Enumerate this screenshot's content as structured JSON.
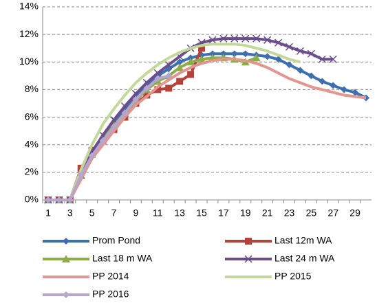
{
  "chart_data": {
    "type": "line",
    "categories": [
      1,
      null,
      3,
      null,
      5,
      null,
      7,
      null,
      9,
      null,
      11,
      null,
      13,
      null,
      15,
      null,
      17,
      null,
      19,
      null,
      21,
      null,
      23,
      null,
      25,
      null,
      27,
      null,
      29,
      null
    ],
    "ylim": [
      0,
      14
    ],
    "yticks": [
      {
        "value": 0,
        "label": "0%"
      },
      {
        "value": 2,
        "label": "2%"
      },
      {
        "value": 4,
        "label": "4%"
      },
      {
        "value": 6,
        "label": "6%"
      },
      {
        "value": 8,
        "label": "8%"
      },
      {
        "value": 10,
        "label": "10%"
      },
      {
        "value": 12,
        "label": "12%"
      },
      {
        "value": 14,
        "label": "14%"
      }
    ],
    "grid": true,
    "series": [
      {
        "name": "Prom Pond",
        "color": "#3e6fb0",
        "marker": "diamond",
        "values": [
          0,
          0,
          0,
          2,
          3.5,
          4.5,
          5.5,
          6.5,
          7.5,
          8.3,
          9,
          9.5,
          10,
          10.3,
          10.5,
          10.6,
          10.6,
          10.6,
          10.6,
          10.5,
          10.4,
          10.2,
          9.8,
          9.4,
          9,
          8.6,
          8.3,
          8,
          7.8,
          7.4
        ]
      },
      {
        "name": "Last 12m WA",
        "color": "#b5413c",
        "marker": "square",
        "values": [
          0,
          0,
          0,
          2.3,
          3.6,
          4.3,
          5.1,
          6,
          7,
          7.6,
          8,
          8.1,
          8.6,
          9.1,
          11,
          null,
          null,
          null,
          null,
          null,
          null,
          null,
          null,
          null,
          null,
          null,
          null,
          null,
          null,
          null
        ]
      },
      {
        "name": "Last 18 m WA",
        "color": "#8fac4b",
        "marker": "triangle",
        "values": [
          0,
          0,
          0,
          1.8,
          3.3,
          4.4,
          5.4,
          6.3,
          7.2,
          8,
          8.6,
          9,
          9.6,
          10,
          10.2,
          10.3,
          10.3,
          10.2,
          10,
          10.3,
          null,
          null,
          null,
          null,
          null,
          null,
          null,
          null,
          null,
          null
        ]
      },
      {
        "name": "Last 24 m WA",
        "color": "#6a4d8c",
        "marker": "x",
        "values": [
          0,
          0,
          0,
          1.8,
          3.5,
          4.7,
          5.8,
          6.8,
          7.7,
          8.5,
          9.2,
          9.8,
          10.4,
          11,
          11.4,
          11.6,
          11.7,
          11.7,
          11.7,
          11.7,
          11.6,
          11.4,
          11.1,
          10.8,
          10.6,
          10.2,
          10.2,
          null,
          null,
          null
        ]
      },
      {
        "name": "PP 2014",
        "color": "#e3958f",
        "values": [
          0,
          0,
          0,
          1.5,
          3,
          4,
          5,
          6,
          6.9,
          7.5,
          8.2,
          8.7,
          9.2,
          9.6,
          9.9,
          10.1,
          10.2,
          10.2,
          10.1,
          9.9,
          9.6,
          9.2,
          8.8,
          8.5,
          8.2,
          8,
          7.8,
          7.6,
          7.5,
          7.4
        ]
      },
      {
        "name": "PP 2015",
        "color": "#c3d89a",
        "values": [
          0,
          0,
          0,
          2.2,
          4,
          5.5,
          6.6,
          7.6,
          8.5,
          9.2,
          9.8,
          10.3,
          10.7,
          11,
          11.2,
          11.3,
          11.3,
          11.3,
          11.2,
          11,
          10.8,
          10.5,
          10.2,
          10,
          null,
          null,
          null,
          null,
          null,
          null
        ]
      },
      {
        "name": "PP 2016",
        "color": "#b4a6cd",
        "marker": "diamond",
        "values": [
          0,
          0,
          0,
          1.8,
          3.2,
          4.3,
          5.3,
          6.3,
          7.3,
          8.1,
          8.8,
          9,
          null,
          null,
          null,
          null,
          null,
          null,
          null,
          null,
          null,
          null,
          null,
          null,
          null,
          null,
          null,
          null,
          null,
          null
        ]
      }
    ]
  }
}
